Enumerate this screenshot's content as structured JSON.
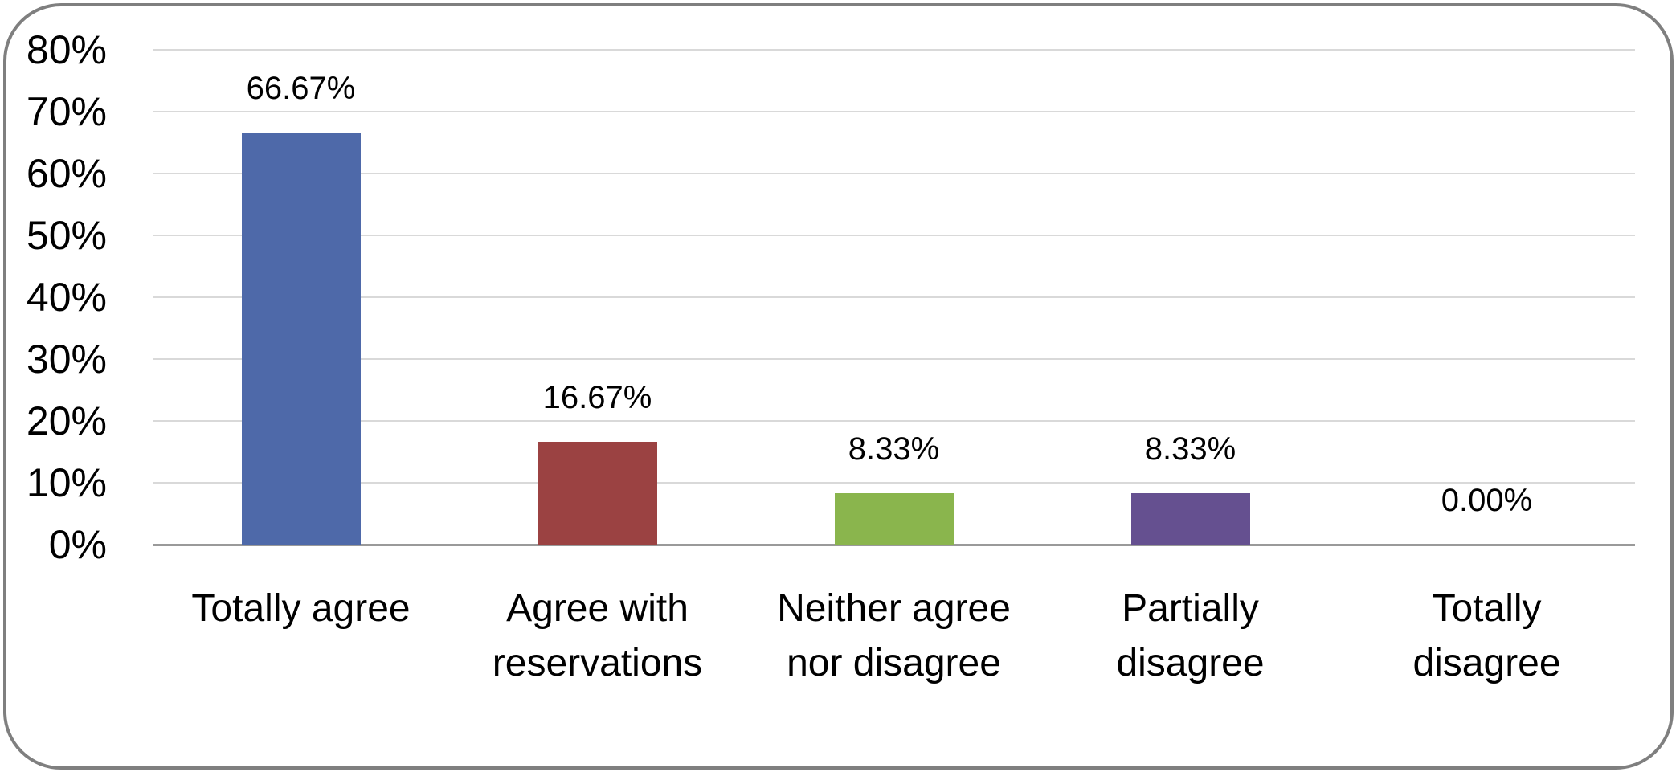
{
  "chart_data": {
    "type": "bar",
    "title": "",
    "xlabel": "",
    "ylabel": "",
    "categories": [
      "Totally agree",
      "Agree with reservations",
      "Neither agree nor disagree",
      "Partially disagree",
      "Totally disagree"
    ],
    "values": [
      66.67,
      16.67,
      8.33,
      8.33,
      0.0
    ],
    "value_labels": [
      "66.67%",
      "16.67%",
      "8.33%",
      "8.33%",
      "0.00%"
    ],
    "ylim": [
      0,
      80
    ],
    "y_ticks": [
      "80%",
      "70%",
      "60%",
      "50%",
      "40%",
      "30%",
      "20%",
      "10%",
      "0%"
    ],
    "y_tick_values": [
      80,
      70,
      60,
      50,
      40,
      30,
      20,
      10,
      0
    ],
    "grid": "horizontal-only",
    "legend": "none",
    "colors": {
      "bars": [
        "#4e69a9",
        "#9b4242",
        "#8ab54d",
        "#655090",
        null
      ],
      "gridline": "#d9d9d9",
      "axis_line": "#9a9a9a",
      "frame_border": "#7f7f7f",
      "text": "#000000",
      "background": "#ffffff"
    }
  }
}
